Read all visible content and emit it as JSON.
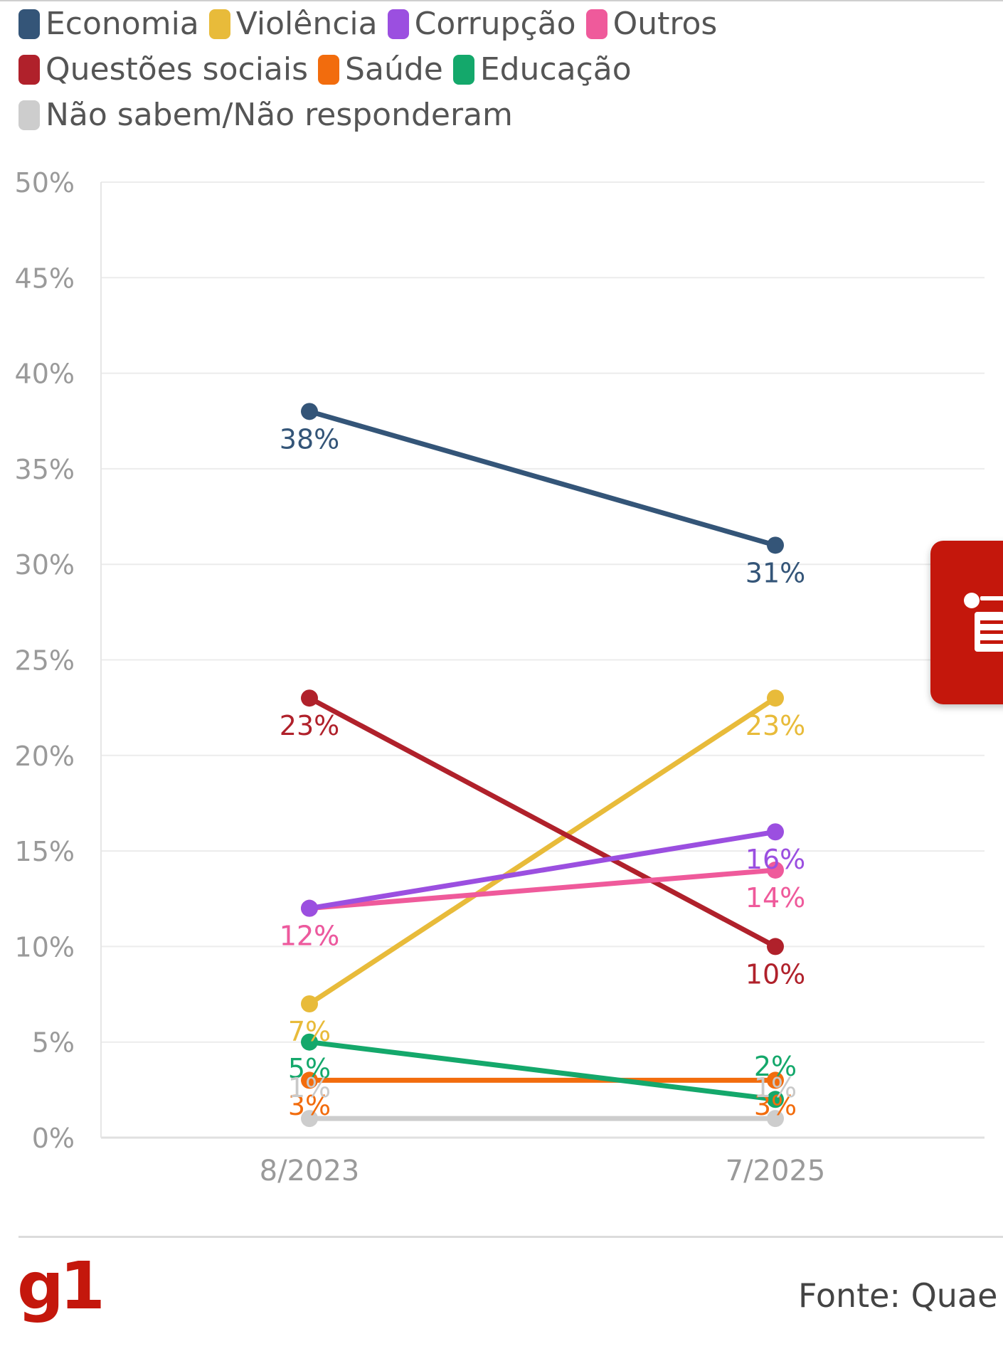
{
  "chart_data": {
    "type": "line",
    "x": [
      "8/2023",
      "7/2025"
    ],
    "ylim": [
      0,
      50
    ],
    "yticks": [
      0,
      5,
      10,
      15,
      20,
      25,
      30,
      35,
      40,
      45,
      50
    ],
    "ytick_labels": [
      "0%",
      "5%",
      "10%",
      "15%",
      "20%",
      "25%",
      "30%",
      "35%",
      "40%",
      "45%",
      "50%"
    ],
    "grid": true,
    "legend_position": "top",
    "series": [
      {
        "name": "Economia",
        "color": "#345578",
        "values": [
          38,
          31
        ],
        "labels": [
          "38%",
          "31%"
        ]
      },
      {
        "name": "Violência",
        "color": "#e8bb3a",
        "values": [
          7,
          23
        ],
        "labels": [
          "7%",
          "23%"
        ]
      },
      {
        "name": "Corrupção",
        "color": "#9b4fe0",
        "values": [
          12,
          16
        ],
        "labels": [
          "12%",
          "16%"
        ]
      },
      {
        "name": "Outros",
        "color": "#ef5a9b",
        "values": [
          12,
          14
        ],
        "labels": [
          "12%",
          "14%"
        ]
      },
      {
        "name": "Questões sociais",
        "color": "#b0212b",
        "values": [
          23,
          10
        ],
        "labels": [
          "23%",
          "10%"
        ]
      },
      {
        "name": "Saúde",
        "color": "#f26c0d",
        "values": [
          3,
          3
        ],
        "labels": [
          "3%",
          "3%"
        ]
      },
      {
        "name": "Educação",
        "color": "#14a86b",
        "values": [
          5,
          2
        ],
        "labels": [
          "5%",
          "2%"
        ]
      },
      {
        "name": "Não sabem/Não responderam",
        "color": "#cdcdcd",
        "values": [
          1,
          1
        ],
        "labels": [
          "1%",
          "1%"
        ]
      }
    ]
  },
  "footer": {
    "logo": "g1",
    "source": "Fonte: Quae"
  },
  "side_button": {
    "icon": "news-icon",
    "color": "#c4170c"
  }
}
